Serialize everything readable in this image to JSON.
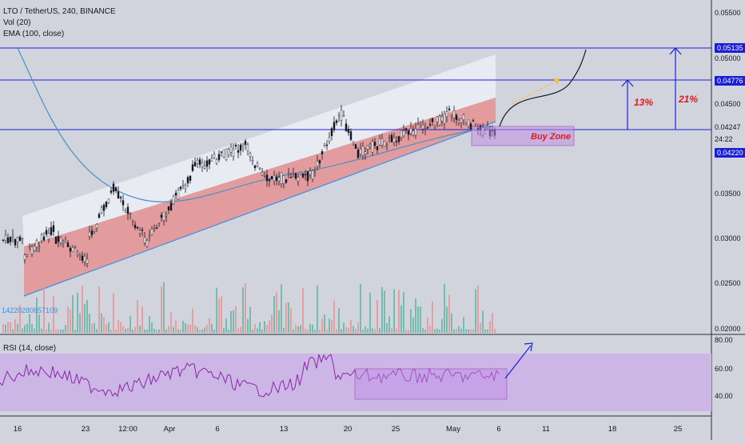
{
  "chart_data": {
    "type": "candlestick",
    "title": "LTO / TetherUS, 240, BINANCE",
    "indicators": [
      "Vol (20)",
      "EMA (100, close)"
    ],
    "rsi_label": "RSI (14, close)",
    "volume_value_label": "14220280657109",
    "price_axis_ticks": [
      "0.05500",
      "0.05000",
      "0.04500",
      "0.03500",
      "0.03000",
      "0.02500",
      "0.02000"
    ],
    "rsi_axis_ticks": [
      "80.00",
      "60.00",
      "40.00"
    ],
    "highlighted_prices": [
      {
        "price": "0.05135",
        "style": "box"
      },
      {
        "price": "0.04776",
        "style": "box"
      },
      {
        "price": "0.04247",
        "style": "plain"
      },
      {
        "price": "24:22",
        "style": "plain"
      },
      {
        "price": "0.04220",
        "style": "box"
      }
    ],
    "x_tick_labels": [
      {
        "label": "16",
        "x": 22
      },
      {
        "label": "23",
        "x": 107
      },
      {
        "label": "12:00",
        "x": 160
      },
      {
        "label": "Apr",
        "x": 212
      },
      {
        "label": "6",
        "x": 272
      },
      {
        "label": "13",
        "x": 355
      },
      {
        "label": "20",
        "x": 435
      },
      {
        "label": "25",
        "x": 495
      },
      {
        "label": "May",
        "x": 567
      },
      {
        "label": "6",
        "x": 624
      },
      {
        "label": "11",
        "x": 683
      },
      {
        "label": "18",
        "x": 766
      },
      {
        "label": "25",
        "x": 848
      }
    ],
    "annotations": {
      "buy_zone": "Buy Zone",
      "target_1": "13%",
      "target_2": "21%"
    },
    "colors": {
      "background": "#d1d4dc",
      "hline": "#1a1fd6",
      "channel_fill": "#e88a8a",
      "channel_upper_fill": "#eceef4",
      "rsi_band": "#cbb6e6",
      "ema": "#4a90c2",
      "rsi_line": "#8e24aa",
      "candle": "#131722",
      "annotation_red": "#e01b1b"
    }
  }
}
